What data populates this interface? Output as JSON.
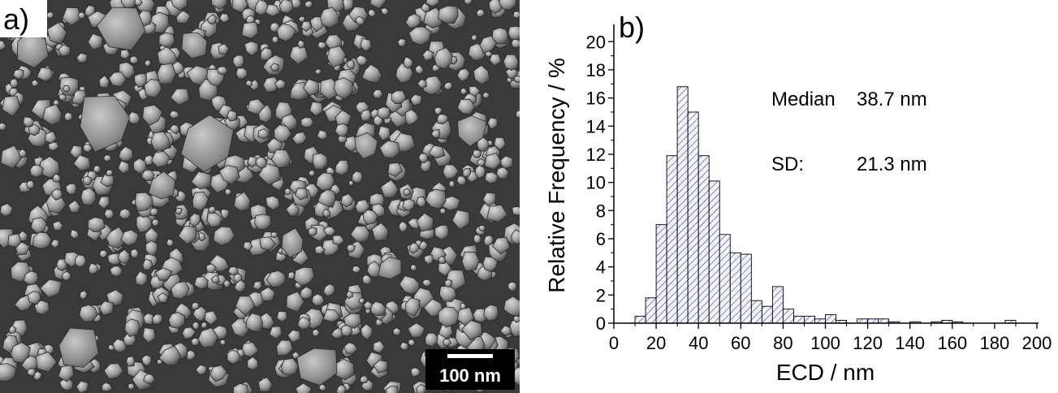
{
  "panel_a": {
    "label": "a)",
    "scale_bar_text": "100 nm"
  },
  "panel_b": {
    "label": "b)"
  },
  "colors": {
    "bar_hatch": "#3a3a8c",
    "bar_fill": "#f4f4fc",
    "sem_background": "#3c3c3c"
  },
  "chart_data": {
    "type": "bar",
    "title": "",
    "xlabel": "ECD / nm",
    "ylabel": "Relative Frequency / %",
    "xlim": [
      0,
      200
    ],
    "ylim": [
      0,
      21
    ],
    "xticks": [
      0,
      20,
      40,
      60,
      80,
      100,
      120,
      140,
      160,
      180,
      200
    ],
    "yticks": [
      0,
      2,
      4,
      6,
      8,
      10,
      12,
      14,
      16,
      18,
      20
    ],
    "bin_width": 5,
    "bins": [
      {
        "start": 10,
        "value": 0.5
      },
      {
        "start": 15,
        "value": 1.8
      },
      {
        "start": 20,
        "value": 7.0
      },
      {
        "start": 25,
        "value": 11.9
      },
      {
        "start": 30,
        "value": 16.8
      },
      {
        "start": 35,
        "value": 15.0
      },
      {
        "start": 40,
        "value": 11.9
      },
      {
        "start": 45,
        "value": 10.1
      },
      {
        "start": 50,
        "value": 6.3
      },
      {
        "start": 55,
        "value": 5.0
      },
      {
        "start": 60,
        "value": 4.9
      },
      {
        "start": 65,
        "value": 1.6
      },
      {
        "start": 70,
        "value": 1.2
      },
      {
        "start": 75,
        "value": 2.6
      },
      {
        "start": 80,
        "value": 1.0
      },
      {
        "start": 85,
        "value": 0.5
      },
      {
        "start": 90,
        "value": 0.5
      },
      {
        "start": 95,
        "value": 0.3
      },
      {
        "start": 100,
        "value": 0.6
      },
      {
        "start": 105,
        "value": 0.2
      },
      {
        "start": 115,
        "value": 0.3
      },
      {
        "start": 120,
        "value": 0.3
      },
      {
        "start": 125,
        "value": 0.3
      },
      {
        "start": 130,
        "value": 0.1
      },
      {
        "start": 140,
        "value": 0.1
      },
      {
        "start": 150,
        "value": 0.1
      },
      {
        "start": 155,
        "value": 0.2
      },
      {
        "start": 160,
        "value": 0.1
      },
      {
        "start": 185,
        "value": 0.2
      }
    ],
    "annotations": [
      {
        "label": "Median",
        "value": "38.7 nm"
      },
      {
        "label": "SD:",
        "value": "21.3 nm"
      }
    ],
    "grid": false,
    "legend": "none"
  }
}
